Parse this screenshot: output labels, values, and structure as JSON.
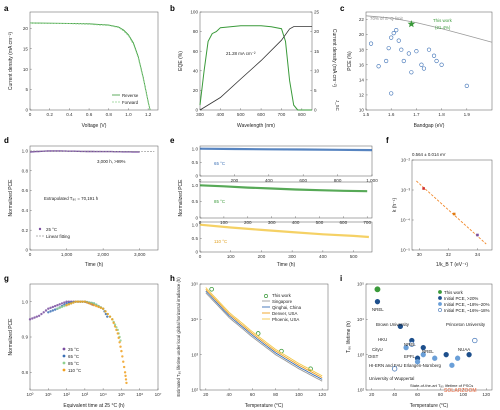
{
  "colors": {
    "green": "#3a9a3a",
    "light_green": "#8fd08f",
    "blue": "#3a6fb5",
    "dark_blue": "#1d4f8c",
    "purple": "#7a4fa0",
    "orange": "#f0a020",
    "yellow": "#f3c94a",
    "gray": "#9a9a9a",
    "red": "#d03030",
    "dark_orange": "#e07a10",
    "dashed_orange": "#f28a2e"
  },
  "panel_labels": [
    "a",
    "b",
    "c",
    "d",
    "e",
    "f",
    "g",
    "h",
    "i"
  ],
  "panels": {
    "a": {
      "ylabel": "Current density (mA cm⁻²)",
      "xlabel": "Voltage (V)",
      "xticks": [
        "0",
        "0.2",
        "0.4",
        "0.6",
        "0.8",
        "1.0",
        "1.2"
      ],
      "yticks": [
        "0",
        "5",
        "10",
        "15",
        "20"
      ],
      "legend": [
        "Reverse",
        "Forward"
      ]
    },
    "b": {
      "ylabel": "EQE (%)",
      "ylabel2": "Current density (mA cm⁻²)",
      "xlabel": "Wavelength (nm)",
      "xticks": [
        "300",
        "400",
        "500",
        "600",
        "700",
        "800"
      ],
      "yticks": [
        "0",
        "20",
        "40",
        "60",
        "80",
        "100"
      ],
      "yticks2": [
        "0",
        "5",
        "10",
        "15",
        "20",
        "25"
      ],
      "annotation": "21.28 mA cm⁻²",
      "y2_sub": "J_SC"
    },
    "c": {
      "ylabel": "PCE (%)",
      "xlabel": "Bandgap (eV)",
      "xticks": [
        "1.5",
        "1.6",
        "1.7",
        "1.8",
        "1.9"
      ],
      "yticks": [
        "10",
        "12",
        "14",
        "16",
        "18",
        "20",
        "22"
      ],
      "sq_label": "70% of S–Q limit",
      "this_work": "This work",
      "this_work_value": "(21.4%)"
    },
    "d": {
      "ylabel": "Normalized PCE",
      "xlabel": "Time (h)",
      "xticks": [
        "0",
        "1,000",
        "2,000",
        "3,000"
      ],
      "yticks": [
        "0",
        "0.2",
        "0.4",
        "0.6",
        "0.8",
        "1.0"
      ],
      "annotation": "3,000 h, >99%",
      "extrapolated": "Extrapolated T₈₀ = 70,191 h",
      "legend": [
        "25 °C",
        "Linear fitting"
      ]
    },
    "e": {
      "ylabel": "Normalized PCE",
      "xlabel": "Time (h)",
      "top_xticks": [
        "0",
        "200",
        "400",
        "600",
        "800",
        "1,000"
      ],
      "mid_xticks": [
        "0",
        "100",
        "200",
        "300",
        "400",
        "500",
        "600",
        "700"
      ],
      "bottom_xticks": [
        "0",
        "100",
        "200",
        "300",
        "400",
        "500"
      ],
      "yticks": [
        "0",
        "0.5",
        "1.0"
      ],
      "labels": [
        "65 °C",
        "85 °C",
        "110 °C"
      ]
    },
    "f": {
      "annotation": "0.564 ± 0.014 eV",
      "ylabel": "k (h⁻¹)",
      "xlabel": "1/k_B T (eV⁻¹)",
      "xticks": [
        "30",
        "32",
        "34"
      ],
      "yticks": [
        "10⁻²",
        "10⁻³",
        "10⁻⁴",
        "10⁻⁵"
      ]
    },
    "g": {
      "ylabel": "Normalized PCE",
      "xlabel": "Equivalent time at 25 °C (h)",
      "xticks": [
        "10⁰",
        "10¹",
        "10²",
        "10³",
        "10⁴",
        "10⁵",
        "10⁶",
        "10⁷"
      ],
      "yticks": [
        "0.8",
        "0.9",
        "1.0"
      ],
      "legend": [
        "25 °C",
        "65 °C",
        "85 °C",
        "110 °C"
      ]
    },
    "h": {
      "ylabel": "Estimated T₈₀ lifetime under local global horizontal irradiance (h)",
      "xlabel": "Temperature (°C)",
      "xticks": [
        "20",
        "40",
        "60",
        "80",
        "100",
        "120"
      ],
      "yticks": [
        "10²",
        "10³",
        "10⁴",
        "10⁵"
      ],
      "legend": [
        "This work",
        "Singapore",
        "Qinghai, China",
        "Denver, USA",
        "Phoenix, USA"
      ]
    },
    "i": {
      "ylabel": "T₈₀ lifetime (h)",
      "xlabel": "Temperature (°C)",
      "xticks": [
        "20",
        "40",
        "60",
        "80",
        "100",
        "120"
      ],
      "yticks": [
        "10²",
        "10³",
        "10⁴",
        "10⁵"
      ],
      "legend": [
        "This work",
        "Initial PCE, >20%",
        "Initial PCE, ~18%–20%",
        "Initial PCE, ~16%–18%"
      ],
      "labels": [
        "NREL",
        "Brown University",
        "Princeton University",
        "HKU",
        "NREL",
        "NREL",
        "CityU",
        "OIST",
        "EPFL",
        "NUAA",
        "HI-ERN and FAU Erlangen-Nürnberg",
        "University of Wuppertal"
      ],
      "footnote": "State-of-the-art T₈₀ lifetime of PSCs",
      "watermark": "SOLARZOOM"
    }
  },
  "chart_data": [
    {
      "type": "line",
      "panel": "a",
      "xlabel": "Voltage (V)",
      "ylabel": "Current density (mA cm⁻²)",
      "xlim": [
        0,
        1.3
      ],
      "ylim": [
        0,
        24
      ],
      "series": [
        {
          "name": "Reverse",
          "x": [
            0,
            0.2,
            0.4,
            0.6,
            0.8,
            0.9,
            0.95,
            1.0,
            1.05,
            1.1,
            1.15,
            1.2,
            1.22
          ],
          "values": [
            21.3,
            21.25,
            21.2,
            21.1,
            20.8,
            20.3,
            19.6,
            18.4,
            16.4,
            13.0,
            8.0,
            2.0,
            0
          ]
        },
        {
          "name": "Forward",
          "x": [
            0,
            0.2,
            0.4,
            0.6,
            0.8,
            0.9,
            0.95,
            1.0,
            1.05,
            1.1,
            1.15,
            1.2,
            1.22
          ],
          "values": [
            21.25,
            21.2,
            21.15,
            21.0,
            20.7,
            20.2,
            19.4,
            18.2,
            16.1,
            12.7,
            7.7,
            1.8,
            0
          ]
        }
      ]
    },
    {
      "type": "line",
      "panel": "b",
      "xlabel": "Wavelength (nm)",
      "ylabel": "EQE (%)",
      "xlim": [
        300,
        850
      ],
      "ylim": [
        0,
        100
      ],
      "series": [
        {
          "name": "EQE",
          "x": [
            300,
            320,
            340,
            360,
            380,
            400,
            450,
            500,
            550,
            600,
            650,
            700,
            720,
            740,
            760,
            780,
            800,
            850
          ],
          "values": [
            5,
            40,
            70,
            78,
            80,
            84,
            85,
            86,
            86,
            86,
            85,
            83,
            70,
            30,
            5,
            0,
            0,
            0
          ]
        },
        {
          "name": "Current density",
          "x": [
            300,
            400,
            500,
            600,
            700,
            740,
            760,
            850
          ],
          "values": [
            0,
            3.2,
            7.9,
            12.6,
            17.8,
            20.7,
            21.28,
            21.28
          ]
        }
      ]
    },
    {
      "type": "scatter",
      "panel": "c",
      "xlabel": "Bandgap (eV)",
      "ylabel": "PCE (%)",
      "xlim": [
        1.5,
        2.0
      ],
      "ylim": [
        10,
        23
      ],
      "series": [
        {
          "name": "70% of S–Q limit",
          "x": [
            1.5,
            1.6,
            1.7,
            1.8,
            1.9,
            2.0
          ],
          "values": [
            22.5,
            22.2,
            21.6,
            20.8,
            19.9,
            19.0
          ]
        },
        {
          "name": "This work",
          "x": [
            1.68
          ],
          "values": [
            21.4
          ]
        },
        {
          "name": "Reported",
          "x": [
            1.52,
            1.55,
            1.58,
            1.59,
            1.6,
            1.61,
            1.6,
            1.62,
            1.63,
            1.64,
            1.65,
            1.67,
            1.68,
            1.7,
            1.72,
            1.73,
            1.75,
            1.77,
            1.78,
            1.8,
            1.9
          ],
          "values": [
            18.8,
            15.8,
            16.5,
            18.2,
            19.6,
            20.2,
            12.2,
            20.6,
            19.2,
            18.0,
            16.5,
            17.5,
            15.0,
            17.8,
            16.0,
            15.5,
            18.0,
            17.2,
            16.5,
            16.0,
            13.2
          ]
        }
      ]
    },
    {
      "type": "line",
      "panel": "d",
      "xlabel": "Time (h)",
      "ylabel": "Normalized PCE",
      "xlim": [
        0,
        3500
      ],
      "ylim": [
        0,
        1.05
      ],
      "series": [
        {
          "name": "25 °C",
          "x": [
            0,
            250,
            500,
            750,
            1000,
            1250,
            1500,
            1750,
            2000,
            2250,
            2500,
            2750,
            3000
          ],
          "values": [
            0.99,
            0.995,
            1.0,
            1.0,
            0.998,
            0.997,
            0.995,
            0.994,
            0.993,
            0.993,
            0.992,
            0.991,
            0.99
          ]
        },
        {
          "name": "Linear fitting",
          "x": [
            0,
            3400
          ],
          "values": [
            1.0,
            0.994
          ]
        }
      ]
    },
    {
      "type": "line",
      "panel": "e",
      "xlabel": "Time (h)",
      "ylabel": "Normalized PCE",
      "series": [
        {
          "name": "65 °C",
          "x": [
            0,
            200,
            400,
            600,
            800,
            1000
          ],
          "values": [
            1.0,
            0.99,
            0.98,
            0.97,
            0.96,
            0.95
          ]
        },
        {
          "name": "85 °C",
          "x": [
            0,
            100,
            200,
            300,
            400,
            500,
            600,
            700
          ],
          "values": [
            1.0,
            0.97,
            0.93,
            0.9,
            0.87,
            0.85,
            0.83,
            0.82
          ]
        },
        {
          "name": "110 °C",
          "x": [
            0,
            100,
            200,
            300,
            400,
            500,
            550
          ],
          "values": [
            1.0,
            0.9,
            0.81,
            0.73,
            0.65,
            0.59,
            0.55
          ]
        }
      ]
    },
    {
      "type": "scatter",
      "panel": "f",
      "xlabel": "1/k_B T (eV⁻¹)",
      "ylabel": "k (h⁻¹)",
      "xlim": [
        29.5,
        35
      ],
      "ylim_log10": [
        -5,
        -2
      ],
      "series": [
        {
          "name": "Measured",
          "x": [
            30.3,
            32.4,
            34.0
          ],
          "values_log10": [
            -2.95,
            -3.8,
            -4.5
          ]
        },
        {
          "name": "Fit",
          "x": [
            29.8,
            34.6
          ],
          "values_log10": [
            -2.7,
            -4.8
          ]
        }
      ]
    },
    {
      "type": "scatter",
      "panel": "g",
      "xlabel": "Equivalent time at 25 °C (h)",
      "ylabel": "Normalized PCE",
      "xlim_log10": [
        0,
        7
      ],
      "ylim": [
        0.75,
        1.05
      ],
      "series": [
        {
          "name": "25 °C",
          "x_log10": [
            0,
            0.5,
            1,
            1.5,
            2,
            2.5,
            3,
            3.3,
            3.5
          ],
          "values": [
            0.95,
            0.96,
            0.98,
            0.99,
            1.0,
            1.0,
            1.0,
            0.995,
            0.99
          ]
        },
        {
          "name": "65 °C",
          "x_log10": [
            1,
            1.5,
            2,
            2.5,
            3,
            3.5,
            4,
            4.3
          ],
          "values": [
            0.97,
            0.98,
            0.995,
            1.0,
            1.0,
            0.995,
            0.98,
            0.95
          ]
        },
        {
          "name": "85 °C",
          "x_log10": [
            1.5,
            2,
            2.5,
            3,
            3.5,
            4,
            4.5,
            4.8,
            5.0
          ],
          "values": [
            0.98,
            0.99,
            1.0,
            1.0,
            0.995,
            0.98,
            0.95,
            0.92,
            0.88
          ]
        },
        {
          "name": "110 °C",
          "x_log10": [
            2,
            2.5,
            3,
            3.5,
            4,
            4.5,
            4.8,
            5.0,
            5.2,
            5.3
          ],
          "values": [
            0.99,
            1.0,
            1.0,
            0.99,
            0.98,
            0.95,
            0.91,
            0.86,
            0.8,
            0.76
          ]
        }
      ]
    },
    {
      "type": "line",
      "panel": "h",
      "xlabel": "Temperature (°C)",
      "ylabel": "Estimated T₈₀ lifetime under local global horizontal irradiance (h)",
      "xlim": [
        15,
        125
      ],
      "ylim_log10": [
        2,
        5
      ],
      "series": [
        {
          "name": "This work",
          "x": [
            25,
            65,
            85,
            110
          ],
          "values_log10": [
            4.85,
            3.6,
            3.1,
            2.6
          ]
        },
        {
          "name": "Singapore",
          "x": [
            20,
            40,
            60,
            80,
            100,
            120
          ],
          "values_log10": [
            4.75,
            4.05,
            3.5,
            3.0,
            2.6,
            2.25
          ]
        },
        {
          "name": "Qinghai, China",
          "x": [
            20,
            40,
            60,
            80,
            100,
            120
          ],
          "values_log10": [
            4.8,
            4.1,
            3.55,
            3.05,
            2.65,
            2.3
          ]
        },
        {
          "name": "Denver, USA",
          "x": [
            20,
            40,
            60,
            80,
            100,
            120
          ],
          "values_log10": [
            4.85,
            4.15,
            3.6,
            3.1,
            2.7,
            2.35
          ]
        },
        {
          "name": "Phoenix, USA",
          "x": [
            20,
            40,
            60,
            80,
            100,
            120
          ],
          "values_log10": [
            4.9,
            4.2,
            3.65,
            3.15,
            2.75,
            2.4
          ]
        }
      ]
    },
    {
      "type": "scatter",
      "panel": "i",
      "xlabel": "Temperature (°C)",
      "ylabel": "T₈₀ lifetime (h)",
      "xlim": [
        15,
        125
      ],
      "ylim_log10": [
        2,
        5
      ],
      "series": [
        {
          "name": "This work",
          "x": [
            25
          ],
          "values_log10": [
            4.85
          ]
        },
        {
          "name": "Initial PCE, >20%",
          "x": [
            25,
            45,
            55,
            60,
            65,
            85,
            105
          ],
          "values_log10": [
            4.5,
            3.8,
            3.4,
            2.9,
            3.2,
            3.0,
            3.0
          ]
        },
        {
          "name": "Initial PCE, ~18%–20%",
          "x": [
            50,
            60,
            65,
            75,
            90,
            95
          ],
          "values_log10": [
            3.2,
            2.8,
            3.0,
            2.9,
            2.7,
            2.9
          ]
        },
        {
          "name": "Initial PCE, ~16%–18%",
          "x": [
            40,
            55,
            110
          ],
          "values_log10": [
            2.6,
            3.3,
            3.4
          ]
        }
      ]
    }
  ]
}
